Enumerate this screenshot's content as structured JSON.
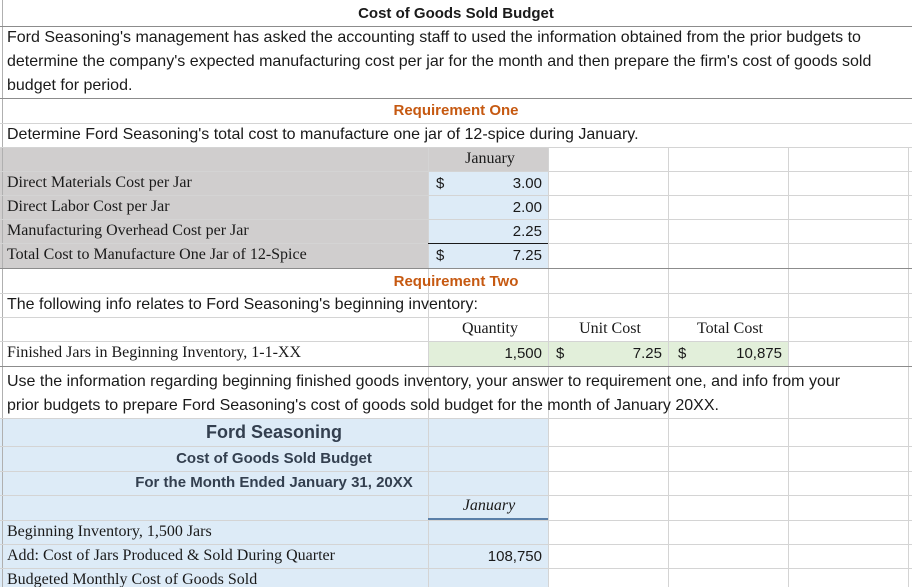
{
  "title": "Cost of Goods Sold Budget",
  "intro": {
    "line1": "Ford Seasoning's management has asked the accounting staff to used the information obtained from the prior budgets to",
    "line2": "determine the company's expected manufacturing cost per jar for the month and then prepare the firm's cost of goods sold",
    "line3": "budget for period."
  },
  "req1": {
    "heading": "Requirement One",
    "prompt": "Determine Ford Seasoning's total cost to manufacture one jar of 12-spice during January.",
    "column_header": "January",
    "currency": "$",
    "rows": [
      {
        "label": "Direct Materials Cost per Jar",
        "value": "3.00",
        "show_currency": true
      },
      {
        "label": "Direct Labor Cost per Jar",
        "value": "2.00",
        "show_currency": false
      },
      {
        "label": "Manufacturing Overhead Cost per Jar",
        "value": "2.25",
        "show_currency": false
      },
      {
        "label": "Total Cost to Manufacture One Jar of 12-Spice",
        "value": "7.25",
        "show_currency": true
      }
    ]
  },
  "req2": {
    "heading": "Requirement Two",
    "prompt": "The following info relates to Ford Seasoning's beginning inventory:",
    "headers": {
      "quantity": "Quantity",
      "unit_cost": "Unit Cost",
      "total_cost": "Total Cost"
    },
    "inventory_row": {
      "label": "Finished Jars in Beginning Inventory, 1-1-XX",
      "quantity": "1,500",
      "unit_currency": "$",
      "unit_cost": "7.25",
      "total_currency": "$",
      "total_cost": "10,875"
    },
    "instructions": {
      "line1": "Use the information regarding beginning finished goods inventory, your answer to requirement one, and info from your",
      "line2": "prior budgets to prepare Ford Seasoning's cost of goods sold budget for the month of January 20XX."
    }
  },
  "budget": {
    "company": "Ford Seasoning",
    "title": "Cost of Goods Sold Budget",
    "period": "For the Month Ended January 31, 20XX",
    "column_header": "January",
    "rows": [
      {
        "label": "Beginning Inventory, 1,500 Jars",
        "value": ""
      },
      {
        "label": "Add: Cost of Jars Produced & Sold During Quarter",
        "value": "108,750"
      },
      {
        "label": "Budgeted Monthly Cost of Goods Sold",
        "value": ""
      }
    ]
  }
}
